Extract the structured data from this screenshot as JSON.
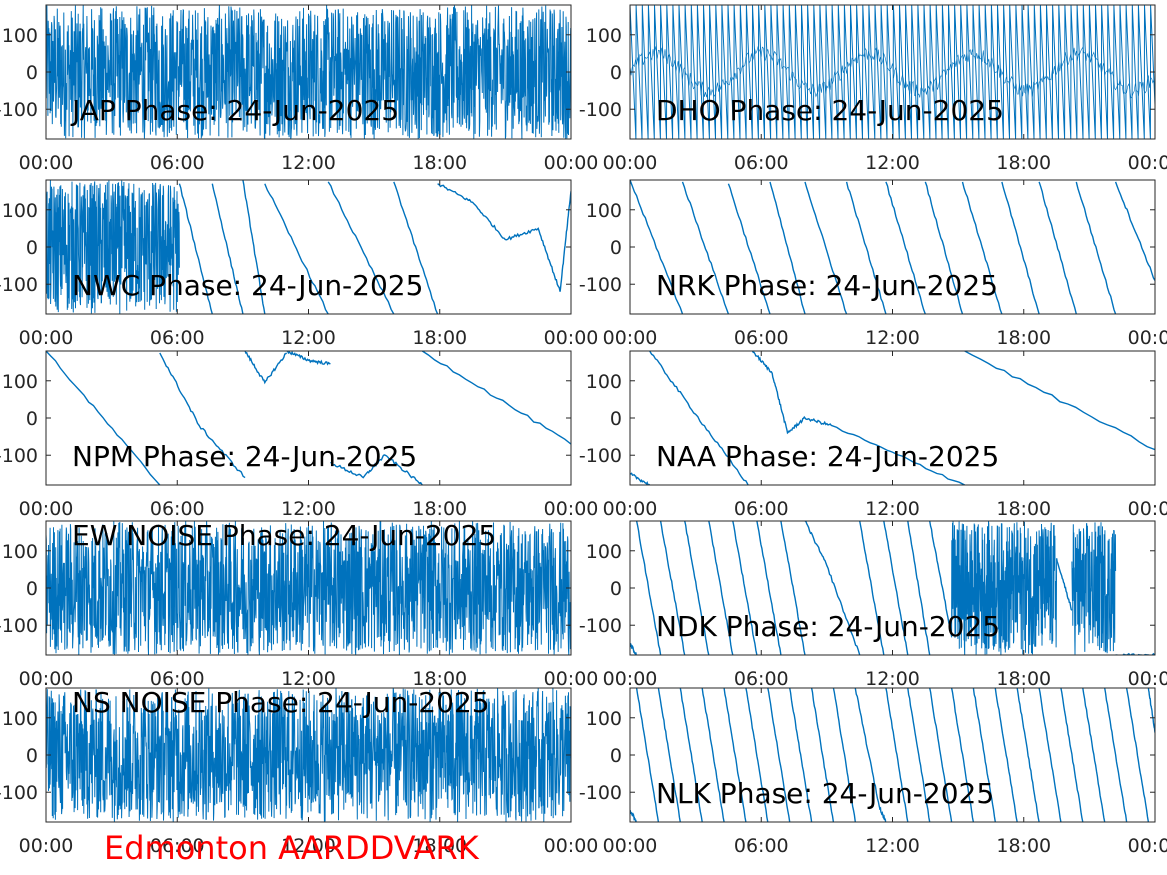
{
  "footer": "Edmonton AARDDVARK",
  "style": {
    "line_color": "#0072BD",
    "axis_color": "#262626",
    "footer_color": "#FF0000",
    "label_color": "#000000"
  },
  "chart_data": [
    {
      "type": "line",
      "title": "JAP Phase: 24-Jun-2025",
      "label_position": "bottom-left",
      "pattern": "noise",
      "ylim": [
        -180,
        180
      ],
      "yticks": [
        -100,
        0,
        100
      ],
      "ytick_labels": [
        "-100",
        "0",
        "100"
      ],
      "xticks": [
        "00:00",
        "06:00",
        "12:00",
        "18:00",
        "00:00"
      ],
      "grid": false
    },
    {
      "type": "line",
      "title": "DHO Phase: 24-Jun-2025",
      "label_position": "bottom-left",
      "pattern": "fast-ramp",
      "ylim": [
        -180,
        180
      ],
      "yticks": [
        -100,
        0,
        100
      ],
      "ytick_labels": [
        "-100",
        "0",
        "100"
      ],
      "xticks": [
        "00:00",
        "06:00",
        "12:00",
        "18:00",
        "00:00"
      ],
      "grid": false
    },
    {
      "type": "line",
      "title": "NWC Phase: 24-Jun-2025",
      "label_position": "bottom-left",
      "ylim": [
        -180,
        180
      ],
      "yticks": [
        -100,
        0,
        100
      ],
      "ytick_labels": [
        "-100",
        "0",
        "100"
      ],
      "xticks": [
        "00:00",
        "06:00",
        "12:00",
        "18:00",
        "00:00"
      ],
      "grid": false,
      "noise_until_hours": 6.1,
      "segments": [
        {
          "x": [
            6.1,
            7.6
          ],
          "y": [
            170,
            -180
          ]
        },
        {
          "x": [
            7.6,
            9.0
          ],
          "y": [
            170,
            -180
          ]
        },
        {
          "x": [
            9.0,
            10.0
          ],
          "y": [
            180,
            -180
          ]
        },
        {
          "x": [
            10.0,
            12.9
          ],
          "y": [
            170,
            -180
          ]
        },
        {
          "x": [
            12.9,
            15.9
          ],
          "y": [
            175,
            -180
          ]
        },
        {
          "x": [
            15.9,
            17.9
          ],
          "y": [
            175,
            -180
          ]
        },
        {
          "x": [
            17.9,
            19.5,
            21.0,
            22.5,
            23.5,
            24.0
          ],
          "y": [
            170,
            120,
            20,
            50,
            -120,
            150
          ]
        }
      ]
    },
    {
      "type": "line",
      "title": "NRK Phase: 24-Jun-2025",
      "label_position": "bottom-left",
      "ylim": [
        -180,
        180
      ],
      "yticks": [
        -100,
        0,
        100
      ],
      "ytick_labels": [
        "-100",
        "0",
        "100"
      ],
      "xticks": [
        "00:00",
        "06:00",
        "12:00",
        "18:00",
        "00:00"
      ],
      "grid": false,
      "segments": [
        {
          "x": [
            0,
            2.4
          ],
          "y": [
            180,
            -180
          ]
        },
        {
          "x": [
            2.4,
            4.5
          ],
          "y": [
            175,
            -180
          ]
        },
        {
          "x": [
            4.5,
            6.4
          ],
          "y": [
            170,
            -180
          ]
        },
        {
          "x": [
            6.4,
            8.0
          ],
          "y": [
            175,
            -180
          ]
        },
        {
          "x": [
            8.0,
            9.9
          ],
          "y": [
            175,
            -180
          ]
        },
        {
          "x": [
            9.9,
            11.7
          ],
          "y": [
            175,
            -180
          ]
        },
        {
          "x": [
            11.7,
            13.5
          ],
          "y": [
            175,
            -180
          ]
        },
        {
          "x": [
            13.5,
            15.2
          ],
          "y": [
            175,
            -180
          ]
        },
        {
          "x": [
            15.2,
            17.0
          ],
          "y": [
            175,
            -180
          ]
        },
        {
          "x": [
            17.0,
            18.7
          ],
          "y": [
            175,
            -180
          ]
        },
        {
          "x": [
            18.7,
            20.4
          ],
          "y": [
            175,
            -180
          ]
        },
        {
          "x": [
            20.4,
            22.2
          ],
          "y": [
            175,
            -180
          ]
        },
        {
          "x": [
            22.2,
            24.0
          ],
          "y": [
            175,
            -90
          ]
        }
      ]
    },
    {
      "type": "line",
      "title": "NPM Phase: 24-Jun-2025",
      "label_position": "bottom-left",
      "ylim": [
        -180,
        180
      ],
      "yticks": [
        -100,
        0,
        100
      ],
      "ytick_labels": [
        "-100",
        "0",
        "100"
      ],
      "xticks": [
        "00:00",
        "06:00",
        "12:00",
        "18:00",
        "00:00"
      ],
      "grid": false,
      "segments": [
        {
          "x": [
            0,
            5.2
          ],
          "y": [
            180,
            -180
          ]
        },
        {
          "x": [
            5.2,
            7.0,
            9.1
          ],
          "y": [
            175,
            -20,
            -160
          ]
        },
        {
          "x": [
            9.1,
            10.0,
            11.0
          ],
          "y": [
            180,
            95,
            175
          ]
        },
        {
          "x": [
            11.0,
            12.0,
            13.0
          ],
          "y": [
            180,
            155,
            145
          ]
        },
        {
          "x": [
            13.0,
            14.5,
            15.5,
            17.2
          ],
          "y": [
            -120,
            -160,
            -100,
            -180
          ]
        },
        {
          "x": [
            17.2,
            24.0
          ],
          "y": [
            180,
            -70
          ]
        }
      ]
    },
    {
      "type": "line",
      "title": "NAA Phase: 24-Jun-2025",
      "label_position": "bottom-left",
      "ylim": [
        -180,
        180
      ],
      "yticks": [
        -100,
        0,
        100
      ],
      "ytick_labels": [
        "-100",
        "0",
        "100"
      ],
      "xticks": [
        "00:00",
        "06:00",
        "12:00",
        "18:00",
        "00:00"
      ],
      "grid": false,
      "segments": [
        {
          "x": [
            0,
            0.9
          ],
          "y": [
            -150,
            -180
          ]
        },
        {
          "x": [
            0.9,
            3.0,
            5.4
          ],
          "y": [
            180,
            10,
            -180
          ]
        },
        {
          "x": [
            5.6,
            6.5,
            7.2,
            8.0,
            9.2,
            15.3
          ],
          "y": [
            180,
            120,
            -40,
            0,
            -20,
            -180
          ]
        },
        {
          "x": [
            15.3,
            24.0
          ],
          "y": [
            180,
            -85
          ]
        }
      ]
    },
    {
      "type": "line",
      "title": "EW NOISE Phase: 24-Jun-2025",
      "label_position": "top-left",
      "pattern": "noise",
      "ylim": [
        -180,
        180
      ],
      "yticks": [
        -100,
        0,
        100
      ],
      "ytick_labels": [
        "-100",
        "0",
        "100"
      ],
      "xticks": [
        "00:00",
        "06:00",
        "12:00",
        "18:00",
        "00:00"
      ],
      "grid": false
    },
    {
      "type": "line",
      "title": "NDK Phase: 24-Jun-2025",
      "label_position": "bottom-left",
      "ylim": [
        -180,
        180
      ],
      "yticks": [
        -100,
        0,
        100
      ],
      "ytick_labels": [
        "-100",
        "0",
        "100"
      ],
      "xticks": [
        "00:00",
        "06:00",
        "12:00",
        "18:00",
        "00:00"
      ],
      "grid": false,
      "noise_ranges": [
        [
          14.7,
          19.5
        ],
        [
          20.2,
          22.2
        ]
      ],
      "segments": [
        {
          "x": [
            0,
            0.3
          ],
          "y": [
            -150,
            -180
          ]
        },
        {
          "x": [
            0.3,
            1.4
          ],
          "y": [
            180,
            -180
          ]
        },
        {
          "x": [
            1.4,
            2.5
          ],
          "y": [
            180,
            -180
          ]
        },
        {
          "x": [
            2.5,
            3.6
          ],
          "y": [
            180,
            -180
          ]
        },
        {
          "x": [
            3.6,
            4.7
          ],
          "y": [
            180,
            -180
          ]
        },
        {
          "x": [
            4.7,
            5.8
          ],
          "y": [
            180,
            -180
          ]
        },
        {
          "x": [
            5.8,
            6.9
          ],
          "y": [
            180,
            -180
          ]
        },
        {
          "x": [
            6.9,
            8.0
          ],
          "y": [
            180,
            -180
          ]
        },
        {
          "x": [
            8.0,
            9.0,
            10.5
          ],
          "y": [
            180,
            60,
            -180
          ]
        },
        {
          "x": [
            10.5,
            11.6
          ],
          "y": [
            180,
            -180
          ]
        },
        {
          "x": [
            11.6,
            12.7
          ],
          "y": [
            180,
            -180
          ]
        },
        {
          "x": [
            12.7,
            13.7
          ],
          "y": [
            180,
            -180
          ]
        },
        {
          "x": [
            13.7,
            14.7
          ],
          "y": [
            180,
            -130
          ]
        },
        {
          "x": [
            19.5,
            20.2
          ],
          "y": [
            80,
            -60
          ]
        },
        {
          "x": [
            22.2,
            24.0
          ],
          "y": [
            -180,
            -180
          ]
        }
      ]
    },
    {
      "type": "line",
      "title": "NS NOISE Phase: 24-Jun-2025",
      "label_position": "top-left",
      "pattern": "noise",
      "ylim": [
        -180,
        180
      ],
      "yticks": [
        -100,
        0,
        100
      ],
      "ytick_labels": [
        "-100",
        "0",
        "100"
      ],
      "xticks": [
        "00:00",
        "06:00",
        "12:00",
        "18:00",
        "00:00"
      ],
      "grid": false
    },
    {
      "type": "line",
      "title": "NLK Phase: 24-Jun-2025",
      "label_position": "bottom-left",
      "ylim": [
        -180,
        180
      ],
      "yticks": [
        -100,
        0,
        100
      ],
      "ytick_labels": [
        "-100",
        "0",
        "100"
      ],
      "xticks": [
        "00:00",
        "06:00",
        "12:00",
        "18:00",
        "00:00"
      ],
      "grid": false,
      "segments": [
        {
          "x": [
            0,
            0.3
          ],
          "y": [
            -150,
            -180
          ]
        },
        {
          "x": [
            0.3,
            1.3
          ],
          "y": [
            180,
            -180
          ]
        },
        {
          "x": [
            1.3,
            2.3
          ],
          "y": [
            180,
            -180
          ]
        },
        {
          "x": [
            2.3,
            3.3
          ],
          "y": [
            180,
            -180
          ]
        },
        {
          "x": [
            3.3,
            4.3
          ],
          "y": [
            180,
            -180
          ]
        },
        {
          "x": [
            4.3,
            5.3
          ],
          "y": [
            180,
            -180
          ]
        },
        {
          "x": [
            5.3,
            6.3
          ],
          "y": [
            180,
            -180
          ]
        },
        {
          "x": [
            6.3,
            7.3
          ],
          "y": [
            180,
            -180
          ]
        },
        {
          "x": [
            7.3,
            8.3
          ],
          "y": [
            180,
            -180
          ]
        },
        {
          "x": [
            8.3,
            9.3
          ],
          "y": [
            180,
            -180
          ]
        },
        {
          "x": [
            9.3,
            10.3
          ],
          "y": [
            180,
            -180
          ]
        },
        {
          "x": [
            10.3,
            11.4,
            11.7
          ],
          "y": [
            180,
            -140,
            -180
          ]
        },
        {
          "x": [
            11.7,
            12.7
          ],
          "y": [
            180,
            -180
          ]
        },
        {
          "x": [
            12.7,
            13.7
          ],
          "y": [
            180,
            -180
          ]
        },
        {
          "x": [
            13.7,
            14.7
          ],
          "y": [
            180,
            -180
          ]
        },
        {
          "x": [
            14.7,
            15.7
          ],
          "y": [
            180,
            -180
          ]
        },
        {
          "x": [
            15.7,
            16.7
          ],
          "y": [
            180,
            -180
          ]
        },
        {
          "x": [
            16.7,
            17.7
          ],
          "y": [
            180,
            -180
          ]
        },
        {
          "x": [
            17.7,
            18.7
          ],
          "y": [
            180,
            -180
          ]
        },
        {
          "x": [
            18.7,
            19.7
          ],
          "y": [
            180,
            -180
          ]
        },
        {
          "x": [
            19.7,
            20.7
          ],
          "y": [
            180,
            -180
          ]
        },
        {
          "x": [
            20.7,
            21.7
          ],
          "y": [
            180,
            -180
          ]
        },
        {
          "x": [
            21.7,
            22.7
          ],
          "y": [
            180,
            -180
          ]
        },
        {
          "x": [
            22.7,
            23.7
          ],
          "y": [
            180,
            -180
          ]
        },
        {
          "x": [
            23.7,
            24.0
          ],
          "y": [
            180,
            60
          ]
        }
      ]
    }
  ]
}
